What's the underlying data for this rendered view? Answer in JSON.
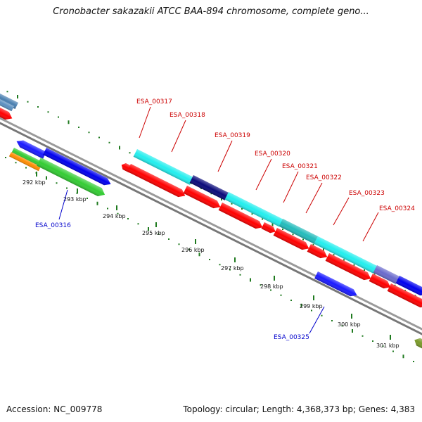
{
  "title": "Cronobacter sakazakii ATCC BAA-894 chromosome, complete geno...",
  "footer": {
    "accession": "Accession: NC_009778",
    "topology": "Topology: circular; Length: 4,368,373 bp; Genes: 4,383"
  },
  "colors": {
    "backbone": "#8c8c8c",
    "tick": "#1f7a1f",
    "label_red": "#cc0000",
    "label_blue": "#0000cc"
  },
  "ticks": [
    "292 kbp",
    "293 kbp",
    "294 kbp",
    "295 kbp",
    "296 kbp",
    "297 kbp",
    "298 kbp",
    "299 kbp",
    "300 kbp",
    "301 kbp"
  ],
  "genes": [
    {
      "label": "ESA_00316",
      "color": "blue"
    },
    {
      "label": "ESA_00317",
      "color": "red"
    },
    {
      "label": "ESA_00318",
      "color": "red"
    },
    {
      "label": "ESA_00319",
      "color": "red"
    },
    {
      "label": "ESA_00320",
      "color": "red"
    },
    {
      "label": "ESA_00321",
      "color": "red"
    },
    {
      "label": "ESA_00322",
      "color": "red"
    },
    {
      "label": "ESA_00323",
      "color": "red"
    },
    {
      "label": "ESA_00324",
      "color": "red"
    },
    {
      "label": "ESA_00325",
      "color": "blue"
    }
  ]
}
